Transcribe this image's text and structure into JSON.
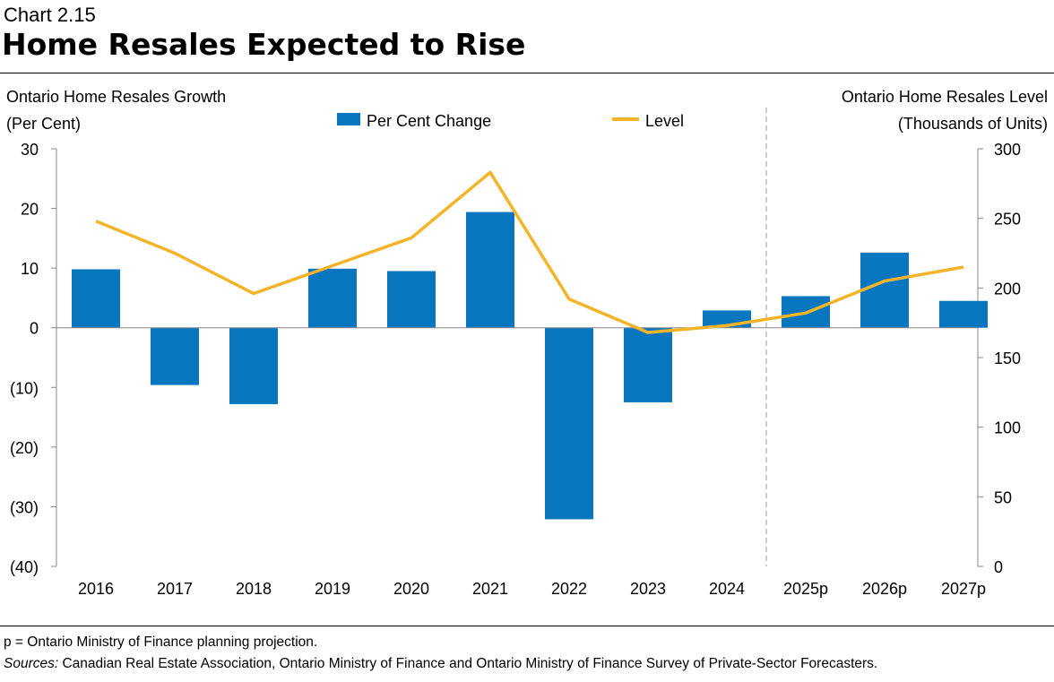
{
  "header": {
    "chart_number": "Chart 2.15",
    "title": "Home Resales Expected to Rise"
  },
  "footer": {
    "note": "p = Ontario Ministry of Finance planning projection.",
    "sources_label": "Sources:",
    "sources_text": " Canadian Real Estate Association, Ontario Ministry of Finance and Ontario Ministry of Finance Survey of Private-Sector Forecasters."
  },
  "chart_data": {
    "type": "bar+line",
    "title": "Home Resales Expected to Rise",
    "categories": [
      "2016",
      "2017",
      "2018",
      "2019",
      "2020",
      "2021",
      "2022",
      "2023",
      "2024",
      "2025p",
      "2026p",
      "2027p"
    ],
    "left_axis": {
      "label_line1": "Ontario Home Resales Growth",
      "label_line2": "(Per Cent)",
      "ylim": [
        -40,
        30
      ],
      "ticks": [
        30,
        20,
        10,
        0,
        -10,
        -20,
        -30,
        -40
      ],
      "tick_labels": [
        "30",
        "20",
        "10",
        "0",
        "(10)",
        "(20)",
        "(30)",
        "(40)"
      ]
    },
    "right_axis": {
      "label_line1": "Ontario Home Resales Level",
      "label_line2": "(Thousands of Units)",
      "ylim": [
        0,
        300
      ],
      "ticks": [
        300,
        250,
        200,
        150,
        100,
        50,
        0
      ],
      "tick_labels": [
        "300",
        "250",
        "200",
        "150",
        "100",
        "50",
        "0"
      ]
    },
    "series": [
      {
        "name": "Per Cent Change",
        "type": "bar",
        "axis": "left",
        "color": "#0877BF",
        "values": [
          9.8,
          -9.6,
          -12.8,
          9.9,
          9.5,
          19.4,
          -32.1,
          -12.5,
          2.9,
          5.3,
          12.6,
          4.5
        ]
      },
      {
        "name": "Level",
        "type": "line",
        "axis": "right",
        "color": "#F3B42A",
        "values": [
          248,
          225,
          196,
          216,
          236,
          283,
          192,
          168,
          173,
          182,
          205,
          215
        ]
      }
    ],
    "projection_divider_after": "2024",
    "legend": "top-center",
    "grid": false
  }
}
